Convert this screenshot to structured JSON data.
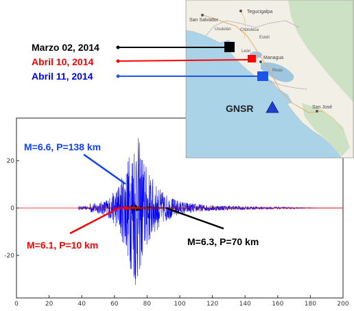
{
  "chart_data": {
    "type": "line",
    "xlim": [
      0,
      200
    ],
    "ylim": [
      -38,
      38
    ],
    "x_ticks": [
      0,
      20,
      40,
      60,
      80,
      100,
      120,
      140,
      160,
      180,
      200
    ],
    "y_ticks": [
      -20,
      0,
      20
    ],
    "series": [
      {
        "name": "Marzo 02, 2014",
        "color": "#000000",
        "annotation": "M=6.3, P=70 km",
        "onset": 56,
        "peak_time": 72,
        "peak_amp": 1.6,
        "coda_end": 120
      },
      {
        "name": "Abril 10, 2014",
        "color": "#ff0000",
        "annotation": "M=6.1, P=10 km",
        "onset": 58,
        "peak_time": 66,
        "peak_amp": 0.9,
        "coda_end": 110
      },
      {
        "name": "Abril 11, 2014",
        "color": "#0000ff",
        "annotation": "M=6.6, P=138 km",
        "onset": 45,
        "peak_time": 73,
        "peak_amp": 36,
        "coda_end": 190
      }
    ]
  },
  "legend": {
    "items": [
      {
        "date": "Marzo 02,  2014",
        "color": "#000000"
      },
      {
        "date": "Abril   10,  2014",
        "color": "#ff0000"
      },
      {
        "date": "Abril   11,  2014",
        "color": "#0000ff"
      }
    ]
  },
  "map": {
    "station_label": "GNSR",
    "places": {
      "tegucigalpa": "Tegucigalpa",
      "san_salvador": "San Salvador",
      "usulutan": "Usulután",
      "choluteca": "Choluteca",
      "esteli": "Estelí",
      "leon": "León",
      "managua": "Managua",
      "rivas": "Rivas",
      "san_jose": "San José"
    },
    "colors": {
      "sea": "#aad3e7",
      "land": "#f1efe6",
      "forest": "#cde2c4",
      "lake": "#9ec7df",
      "station": "#1d3fcf"
    }
  }
}
